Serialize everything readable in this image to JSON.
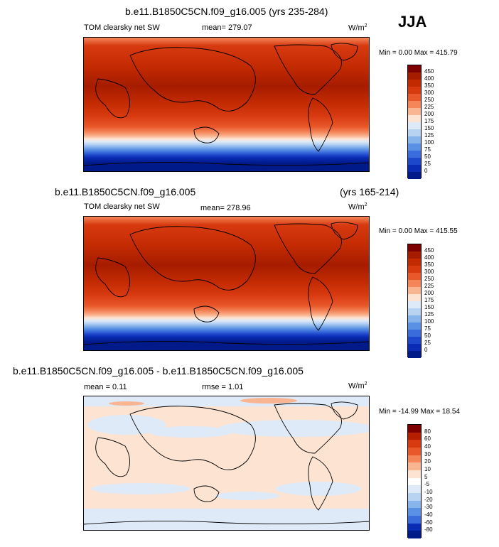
{
  "season": "JJA",
  "units_base": "W/m",
  "units_exp": "2",
  "panel1": {
    "title": "b.e11.B1850C5CN.f09_g16.005 (yrs 235-284)",
    "variable": "TOM clearsky net SW",
    "mean": "mean= 279.07",
    "minmax": "Min =   0.00 Max = 415.79"
  },
  "panel2": {
    "title_left": "b.e11.B1850C5CN.f09_g16.005",
    "title_right": "(yrs 165-214)",
    "variable": "TOM clearsky net SW",
    "mean": "mean= 278.96",
    "minmax": "Min =   0.00 Max = 415.55"
  },
  "panel3": {
    "title": "b.e11.B1850C5CN.f09_g16.005 - b.e11.B1850C5CN.f09_g16.005",
    "mean": "mean =    0.11",
    "rmse": "rmse =    1.01",
    "minmax": "Min = -14.99 Max =  18.54"
  },
  "colorbar_abs": {
    "labels": [
      "450",
      "400",
      "350",
      "300",
      "250",
      "225",
      "200",
      "175",
      "150",
      "125",
      "100",
      "75",
      "50",
      "25",
      "0"
    ],
    "colors": [
      "#7f0000",
      "#a61c00",
      "#c22a02",
      "#d83a10",
      "#e8582a",
      "#f4865a",
      "#f9b592",
      "#fde3d2",
      "#dfeaf8",
      "#b8d2f2",
      "#88b4ec",
      "#5b91e4",
      "#3a6ddb",
      "#1e48cc",
      "#0a2bb3",
      "#001a8a"
    ]
  },
  "colorbar_diff": {
    "labels": [
      "80",
      "60",
      "40",
      "30",
      "20",
      "10",
      "5",
      "-5",
      "-10",
      "-20",
      "-30",
      "-40",
      "-60",
      "-80"
    ],
    "colors": [
      "#7f0000",
      "#b51f00",
      "#d83a10",
      "#e8582a",
      "#f4865a",
      "#f9b592",
      "#fde3d2",
      "#ffffff",
      "#dfeaf8",
      "#b8d2f2",
      "#88b4ec",
      "#5b91e4",
      "#3a6ddb",
      "#0a2bb3",
      "#001a8a"
    ]
  },
  "chart_data": [
    {
      "type": "heatmap",
      "title": "b.e11.B1850C5CN.f09_g16.005 (yrs 235-284)",
      "subtitle": "TOM clearsky net SW",
      "season": "JJA",
      "units": "W/m2",
      "mean": 279.07,
      "min": 0.0,
      "max": 415.79,
      "contour_levels": [
        0,
        25,
        50,
        75,
        100,
        125,
        150,
        175,
        200,
        225,
        250,
        300,
        350,
        400,
        450
      ]
    },
    {
      "type": "heatmap",
      "title": "b.e11.B1850C5CN.f09_g16.005 (yrs 165-214)",
      "subtitle": "TOM clearsky net SW",
      "units": "W/m2",
      "mean": 278.96,
      "min": 0.0,
      "max": 415.55,
      "contour_levels": [
        0,
        25,
        50,
        75,
        100,
        125,
        150,
        175,
        200,
        225,
        250,
        300,
        350,
        400,
        450
      ]
    },
    {
      "type": "heatmap",
      "title": "b.e11.B1850C5CN.f09_g16.005 - b.e11.B1850C5CN.f09_g16.005",
      "units": "W/m2",
      "mean": 0.11,
      "rmse": 1.01,
      "min": -14.99,
      "max": 18.54,
      "contour_levels": [
        -80,
        -60,
        -40,
        -30,
        -20,
        -10,
        -5,
        5,
        10,
        20,
        30,
        40,
        60,
        80
      ]
    }
  ]
}
